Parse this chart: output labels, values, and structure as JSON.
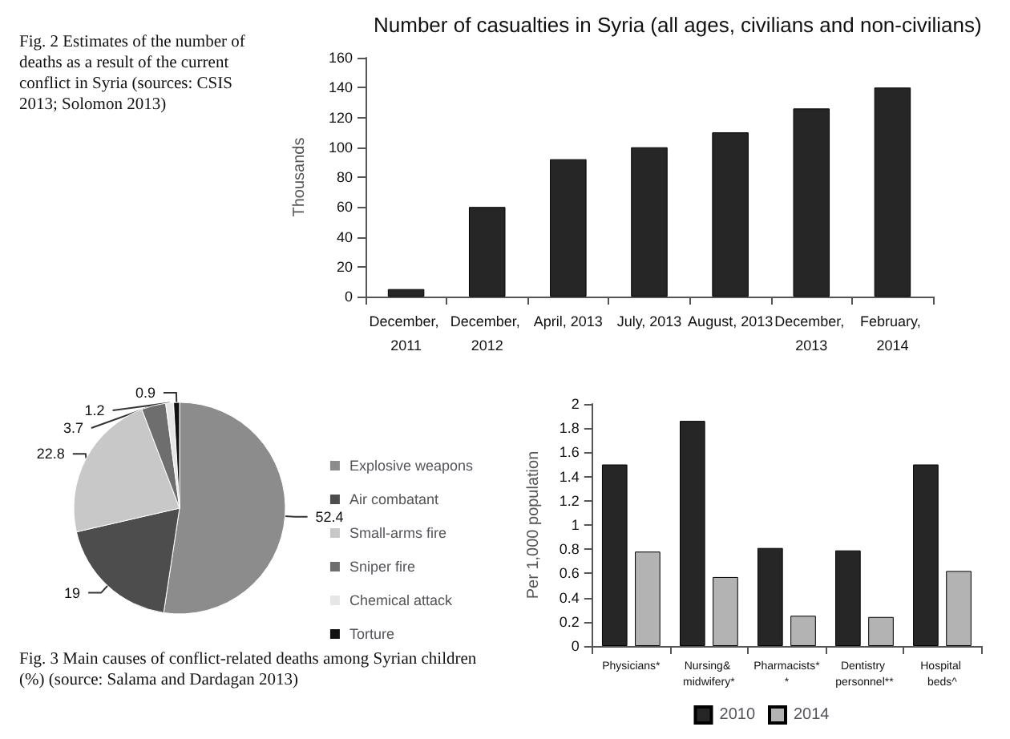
{
  "chart_data": [
    {
      "type": "bar",
      "title": "Number of casualties in Syria (all ages, civilians and non-civilians)",
      "ylabel": "Thousands",
      "annotations": [
        "Fig. 2 Estimates of the number of deaths as a result of the current conflict in Syria (sources: CSIS 2013; Solomon 2013)"
      ],
      "categories": [
        "December, 2011",
        "December, 2012",
        "April, 2013",
        "July, 2013",
        "August, 2013",
        "December, 2013",
        "February, 2014"
      ],
      "values": [
        5,
        60,
        92,
        100,
        110,
        126,
        140
      ],
      "color": "#262626",
      "ylim": [
        0,
        160
      ],
      "yticks": [
        0,
        20,
        40,
        60,
        80,
        100,
        120,
        140,
        160
      ],
      "grid": false
    },
    {
      "type": "pie",
      "annotations": [
        "Fig. 3 Main causes of conflict-related deaths among Syrian children (%) (source: Salama and Dardagan 2013)"
      ],
      "categories": [
        "Explosive weapons",
        "Air combatant",
        "Small-arms fire",
        "Sniper fire",
        "Chemical attack",
        "Torture"
      ],
      "values": [
        52.4,
        19,
        22.8,
        3.7,
        1.2,
        0.9
      ],
      "colors": [
        "#8c8c8c",
        "#4d4d4d",
        "#c8c8c8",
        "#6e6e6e",
        "#e6e6e6",
        "#111111"
      ],
      "data_labels": true,
      "legend": "right"
    },
    {
      "type": "bar",
      "ylabel": "Per 1,000 population",
      "categories": [
        "Physicians*",
        "Nursing& midwifery*",
        "Pharmacists**",
        "Dentistry personnel**",
        "Hospital beds^"
      ],
      "series": [
        {
          "name": "2010",
          "color": "#262626",
          "values": [
            1.5,
            1.86,
            0.81,
            0.79,
            1.5
          ]
        },
        {
          "name": "2014",
          "color": "#b3b3b3",
          "values": [
            0.78,
            0.57,
            0.25,
            0.24,
            0.62
          ]
        }
      ],
      "ylim": [
        0,
        2
      ],
      "yticks": [
        0,
        0.2,
        0.4,
        0.6,
        0.8,
        1,
        1.2,
        1.4,
        1.6,
        1.8,
        2
      ],
      "grid": false,
      "legend": "bottom"
    }
  ]
}
